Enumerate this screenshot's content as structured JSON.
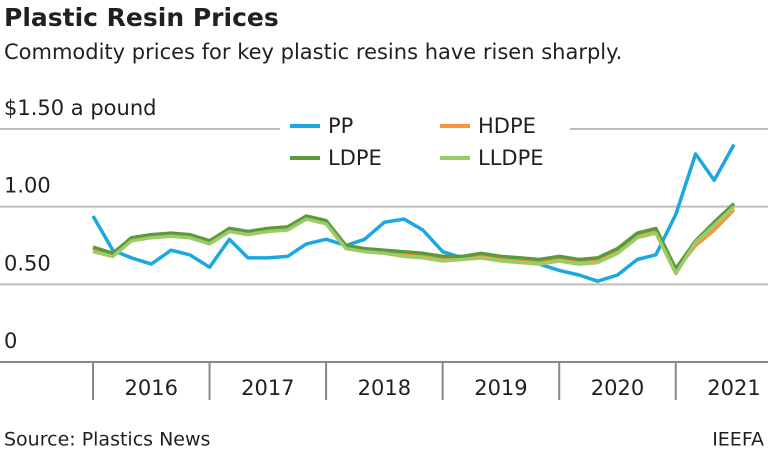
{
  "chart_data": {
    "type": "line",
    "title": "Plastic Resin Prices",
    "subtitle": "Commodity prices for key plastic resins have risen sharply.",
    "source": "Source: Plastics News",
    "credit": "IEEFA",
    "x": [
      2016,
      2016.17,
      2016.33,
      2016.5,
      2016.67,
      2016.83,
      2017,
      2017.17,
      2017.33,
      2017.5,
      2017.67,
      2017.83,
      2018,
      2018.17,
      2018.33,
      2018.5,
      2018.67,
      2018.83,
      2019,
      2019.17,
      2019.33,
      2019.5,
      2019.67,
      2019.83,
      2020,
      2020.17,
      2020.33,
      2020.5,
      2020.67,
      2020.83,
      2021,
      2021.17,
      2021.33,
      2021.5
    ],
    "xlim": [
      2016,
      2021.8
    ],
    "xticks": [
      2016,
      2017,
      2018,
      2019,
      2020,
      2021
    ],
    "ylim": [
      0,
      1.5
    ],
    "yticks": [
      0,
      {
        "value": 0.5,
        "label": "0.50"
      },
      {
        "value": 1,
        "label": "1.00"
      },
      {
        "value": 1.5,
        "label": "$1.50 a pound"
      }
    ],
    "grid": true,
    "legend": "top-center",
    "series": [
      {
        "name": "PP",
        "color": "#1ba8e0",
        "values": [
          0.94,
          0.72,
          0.67,
          0.63,
          0.72,
          0.69,
          0.61,
          0.79,
          0.67,
          0.67,
          0.68,
          0.76,
          0.79,
          0.75,
          0.79,
          0.9,
          0.92,
          0.85,
          0.71,
          0.67,
          0.67,
          0.67,
          0.66,
          0.63,
          0.59,
          0.56,
          0.52,
          0.56,
          0.66,
          0.69,
          0.95,
          1.34,
          1.17,
          1.4
        ]
      },
      {
        "name": "HDPE",
        "color": "#f7963c",
        "values": [
          0.73,
          0.69,
          0.79,
          0.81,
          0.82,
          0.81,
          0.77,
          0.85,
          0.83,
          0.85,
          0.86,
          0.93,
          0.9,
          0.74,
          0.72,
          0.71,
          0.7,
          0.69,
          0.67,
          0.67,
          0.69,
          0.67,
          0.66,
          0.65,
          0.67,
          0.65,
          0.66,
          0.72,
          0.82,
          0.85,
          0.59,
          0.75,
          0.85,
          0.98
        ]
      },
      {
        "name": "LDPE",
        "color": "#5a9a3a",
        "values": [
          0.74,
          0.7,
          0.8,
          0.82,
          0.83,
          0.82,
          0.78,
          0.86,
          0.84,
          0.86,
          0.87,
          0.94,
          0.91,
          0.75,
          0.73,
          0.72,
          0.71,
          0.7,
          0.68,
          0.68,
          0.7,
          0.68,
          0.67,
          0.66,
          0.68,
          0.66,
          0.67,
          0.73,
          0.83,
          0.86,
          0.6,
          0.78,
          0.9,
          1.02
        ]
      },
      {
        "name": "LLDPE",
        "color": "#9ccc6a",
        "values": [
          0.71,
          0.68,
          0.78,
          0.8,
          0.81,
          0.8,
          0.76,
          0.84,
          0.82,
          0.84,
          0.85,
          0.92,
          0.89,
          0.73,
          0.71,
          0.7,
          0.68,
          0.67,
          0.65,
          0.66,
          0.67,
          0.65,
          0.64,
          0.63,
          0.65,
          0.63,
          0.64,
          0.7,
          0.8,
          0.83,
          0.57,
          0.77,
          0.88,
          1.0
        ]
      }
    ]
  }
}
